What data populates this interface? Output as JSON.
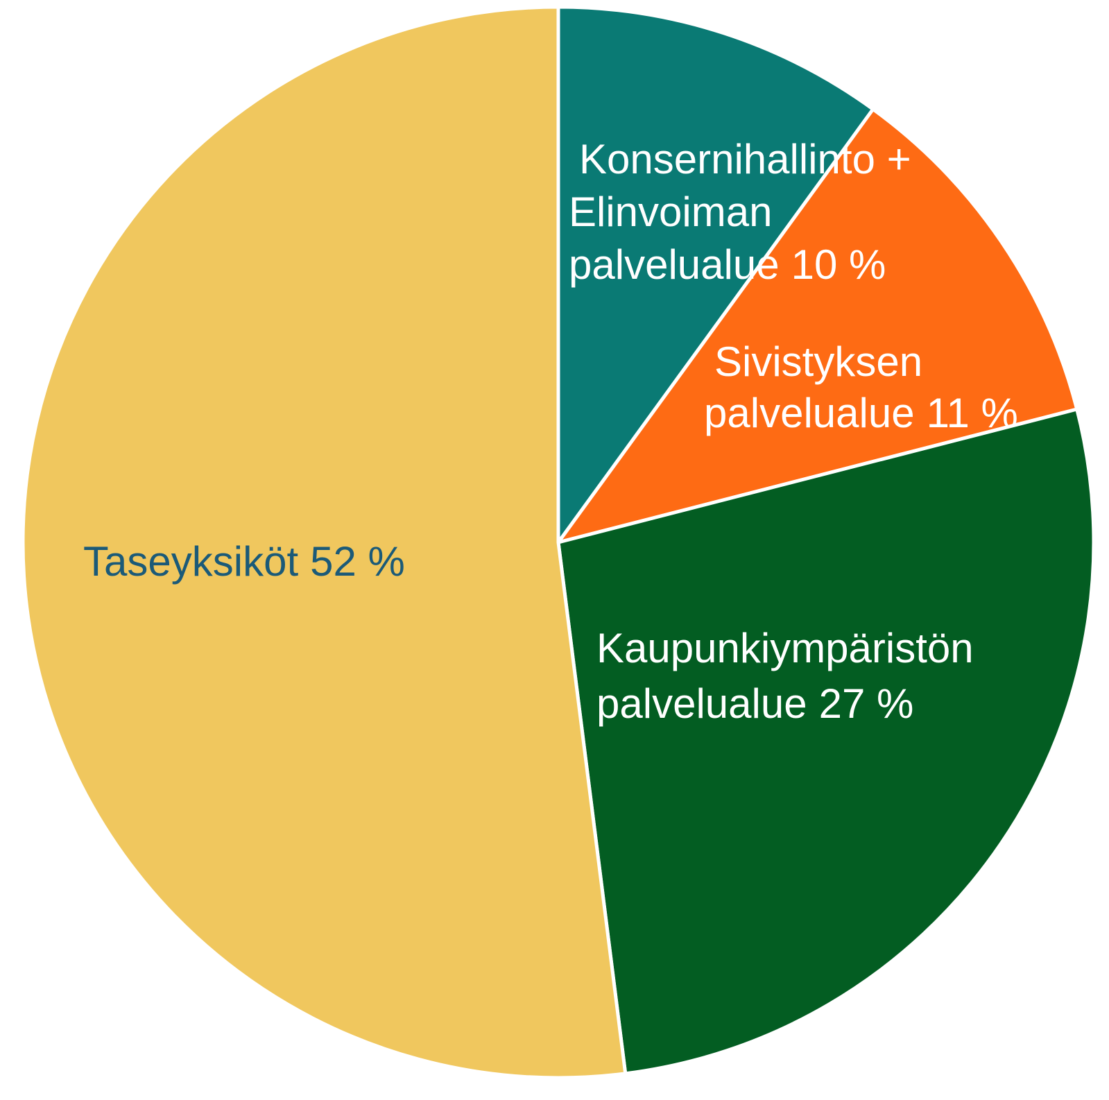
{
  "chart_data": {
    "type": "pie",
    "categories": [
      "Konsernihallinto +\nElinvoiman\npalvelualue",
      "Sivistyksen\npalvelualue",
      "Kaupunkiympäristön\npalvelualue",
      "Taseyksiköt"
    ],
    "values": [
      10,
      11,
      27,
      52
    ],
    "value_labels": [
      "10 %",
      "11 %",
      "27 %",
      "52 %"
    ],
    "colors": [
      "#0a7a74",
      "#fe6b14",
      "#035d22",
      "#f0c75e"
    ]
  }
}
